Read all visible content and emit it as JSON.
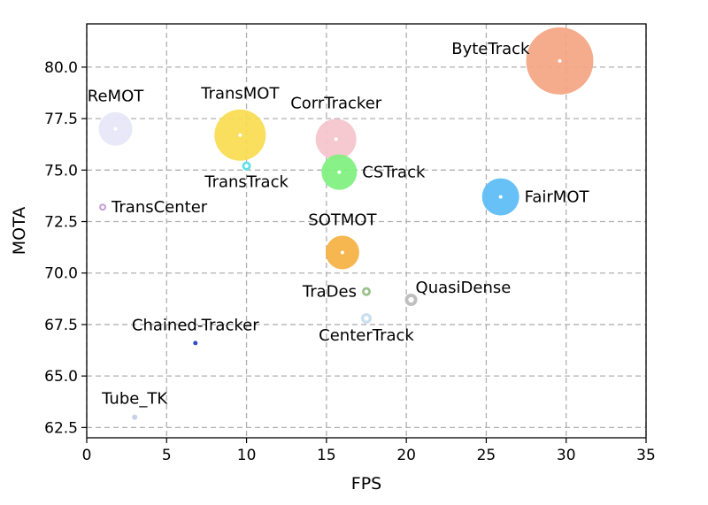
{
  "chart_data": {
    "type": "scatter",
    "xlabel": "FPS",
    "ylabel": "MOTA",
    "xlim": [
      0,
      35
    ],
    "ylim": [
      62.0,
      82.1
    ],
    "x_ticks": [
      0,
      5,
      10,
      15,
      20,
      25,
      30,
      35
    ],
    "y_ticks": [
      62.5,
      65.0,
      67.5,
      70.0,
      72.5,
      75.0,
      77.5,
      80.0
    ],
    "grid": true,
    "grid_style": "dashed",
    "points": [
      {
        "label": "ByteTrack",
        "x": 29.6,
        "y": 80.3,
        "size": 38,
        "color": "#f4a582",
        "label_pos": "left"
      },
      {
        "label": "ReMOT",
        "x": 1.8,
        "y": 77.0,
        "size": 19,
        "color": "#e6e6f7",
        "label_pos": "above"
      },
      {
        "label": "TransMOT",
        "x": 9.6,
        "y": 76.7,
        "size": 29,
        "color": "#f9dc4f",
        "label_pos": "above"
      },
      {
        "label": "CorrTracker",
        "x": 15.6,
        "y": 76.5,
        "size": 23,
        "color": "#f5c3cc",
        "label_pos": "above"
      },
      {
        "label": "TransTrack",
        "x": 10.0,
        "y": 75.2,
        "size": 5,
        "color": "#5fe0e8",
        "ring": true,
        "label_pos": "below"
      },
      {
        "label": "CSTrack",
        "x": 15.8,
        "y": 74.9,
        "size": 20,
        "color": "#7ef07e",
        "label_pos": "right"
      },
      {
        "label": "TransCenter",
        "x": 1.0,
        "y": 73.2,
        "size": 4,
        "color": "#c9a0d8",
        "ring": true,
        "label_pos": "right"
      },
      {
        "label": "FairMOT",
        "x": 25.9,
        "y": 73.7,
        "size": 21,
        "color": "#5bbcf5",
        "label_pos": "right"
      },
      {
        "label": "SOTMOT",
        "x": 16.0,
        "y": 71.0,
        "size": 19,
        "color": "#f5b041",
        "label_pos": "above"
      },
      {
        "label": "TraDes",
        "x": 17.5,
        "y": 69.1,
        "size": 5,
        "color": "#99c28c",
        "ring": true,
        "label_pos": "left"
      },
      {
        "label": "QuasiDense",
        "x": 20.3,
        "y": 68.7,
        "size": 7,
        "color": "#bfbfbf",
        "ring": true,
        "label_pos": "upper-right"
      },
      {
        "label": "CenterTrack",
        "x": 17.5,
        "y": 67.8,
        "size": 6,
        "color": "#c9dfee",
        "ring": true,
        "label_pos": "below"
      },
      {
        "label": "Chained-Tracker",
        "x": 6.8,
        "y": 66.6,
        "size": 2.5,
        "color": "#1f3ec9",
        "label_pos": "above"
      },
      {
        "label": "Tube_TK",
        "x": 3.0,
        "y": 63.0,
        "size": 3,
        "color": "#c6cde6",
        "label_pos": "above"
      }
    ]
  }
}
